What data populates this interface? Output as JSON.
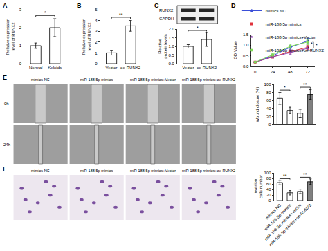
{
  "chart_data": [
    {
      "panel": "A",
      "type": "bar",
      "categories": [
        "Normal",
        "Keloids"
      ],
      "values": [
        1,
        2
      ],
      "errors": [
        0.15,
        0.5
      ],
      "colors": [
        "#ffffff",
        "#ffffff"
      ],
      "y_label": "Relative expression level of RUNX2",
      "ylim": [
        0,
        3
      ],
      "yticks": [
        0,
        1,
        2,
        3
      ],
      "annotations": [
        {
          "text": "*",
          "between": [
            "Normal",
            "Keloids"
          ]
        }
      ]
    },
    {
      "panel": "B",
      "type": "bar",
      "categories": [
        "Vector",
        "oe-RUNX2"
      ],
      "values": [
        1,
        3.5
      ],
      "errors": [
        0.2,
        0.5
      ],
      "colors": [
        "#ffffff",
        "#ffffff"
      ],
      "y_label": "Relative expression level of RUNX2",
      "ylim": [
        0,
        5
      ],
      "yticks": [
        0,
        1,
        2,
        3,
        4,
        5
      ],
      "annotations": [
        {
          "text": "**",
          "between": [
            "Vector",
            "oe-RUNX2"
          ]
        }
      ]
    },
    {
      "panel": "C",
      "type": "bar",
      "categories": [
        "Vector",
        "oe-RUNX2"
      ],
      "values": [
        1,
        1.4
      ],
      "errors": [
        0.1,
        0.4
      ],
      "colors": [
        "#ffffff",
        "#ffffff"
      ],
      "y_label": "Relative protein levels",
      "ylim": [
        0,
        2
      ],
      "yticks": [
        {
          "value": 0,
          "label": "0.0"
        },
        0.5,
        {
          "value": 1,
          "label": "1.0"
        },
        1.5,
        {
          "value": 2,
          "label": "2.0"
        }
      ],
      "blot": [
        "RUNX2",
        "GAPDH"
      ],
      "annotations": [
        {
          "text": "*",
          "between": [
            "Vector",
            "oe-RUNX2"
          ]
        }
      ]
    },
    {
      "panel": "D",
      "type": "line",
      "x": [
        0,
        24,
        48,
        72
      ],
      "xlim": [
        -5,
        82
      ],
      "xticks": [
        0,
        24,
        48,
        72
      ],
      "ylim": [
        0,
        1.5
      ],
      "yticks": [
        {
          "value": 0,
          "label": "0.0"
        },
        0.5,
        {
          "value": 1,
          "label": "1.0"
        },
        1.5
      ],
      "y_label": "OD Value",
      "legend": "top-left",
      "series": [
        {
          "name": "mimics NC",
          "color": "#3b4fd8",
          "marker": "diamond",
          "values": [
            0.2,
            0.5,
            0.9,
            1.2
          ],
          "errors": [
            0.02,
            0.06,
            0.1,
            0.12
          ]
        },
        {
          "name": "miR-188-5p mimics",
          "color": "#e0323c",
          "marker": "square",
          "values": [
            0.2,
            0.45,
            0.7,
            0.9
          ],
          "errors": [
            0.02,
            0.05,
            0.08,
            0.1
          ]
        },
        {
          "name": "miR-188-5p mimics+Vector",
          "color": "#8e44ad",
          "marker": "triangle-up",
          "values": [
            0.2,
            0.45,
            0.65,
            0.85
          ],
          "errors": [
            0.02,
            0.05,
            0.08,
            0.1
          ]
        },
        {
          "name": "miR-188-5p mimics+oe-RUNX2",
          "color": "#7ed957",
          "marker": "circle",
          "values": [
            0.2,
            0.55,
            0.95,
            1.15
          ],
          "errors": [
            0.02,
            0.06,
            0.1,
            0.12
          ]
        }
      ],
      "annotations": [
        {
          "text": "*",
          "between": [
            "mimics NC",
            "miR-188-5p mimics"
          ]
        },
        {
          "text": "*",
          "between": [
            "miR-188-5p mimics+Vector",
            "miR-188-5p mimics+oe-RUNX2"
          ]
        }
      ]
    },
    {
      "type": "bar",
      "categories": [
        "mimics NC",
        "miR-188-5p mimics",
        "miR-188-5p mimics+Vector",
        "miR-188-5p mimics+oe-RUNX2"
      ],
      "values": [
        65,
        35,
        28,
        75
      ],
      "errors": [
        15,
        8,
        10,
        12
      ],
      "colors": [
        "#ffffff",
        "#ffffff",
        "#ffffff",
        "#808080"
      ],
      "y_label": "Wound closure (%)",
      "ylim": [
        0,
        100
      ],
      "yticks": [
        0,
        20,
        40,
        60,
        80,
        100
      ],
      "tick_labels": "y",
      "annotations": [
        {
          "text": "*",
          "between": [
            "mimics NC",
            "miR-188-5p mimics"
          ]
        },
        {
          "text": "**",
          "between": [
            "miR-188-5p mimics+Vector",
            "miR-188-5p mimics+oe-RUNX2"
          ]
        }
      ]
    },
    {
      "type": "bar",
      "categories": [
        "mimics NC",
        "miR-188-5p mimics",
        "miR-188-5p mimics+Vector",
        "miR-188-5p mimics+oe-RUNX2"
      ],
      "values": [
        65,
        28,
        33,
        68
      ],
      "errors": [
        8,
        8,
        8,
        10
      ],
      "colors": [
        "#ffffff",
        "#ffffff",
        "#ffffff",
        "#808080"
      ],
      "y_label": "Invasion cells number",
      "ylim": [
        0,
        100
      ],
      "yticks": [
        0,
        20,
        40,
        60,
        80,
        100
      ],
      "annotations": [
        {
          "text": "**",
          "between": [
            "mimics NC",
            "miR-188-5p mimics"
          ]
        },
        {
          "text": "**",
          "between": [
            "miR-188-5p mimics+Vector",
            "miR-188-5p mimics+oe-RUNX2"
          ]
        }
      ]
    }
  ],
  "images": [
    {
      "panel": "E",
      "columns": [
        "mimics NC",
        "miR-188-5p mimics",
        "miR-188-5p mimics+Vector",
        "miR-188-5p mimics+oe-RUNX2"
      ],
      "rows": [
        "0h",
        "24h"
      ]
    },
    {
      "panel": "F",
      "columns": [
        "mimics NC",
        "miR-188-5p mimics",
        "miR-188-5p mimics+Vector",
        "miR-188-5p mimics+oe-RUNX2"
      ]
    }
  ]
}
